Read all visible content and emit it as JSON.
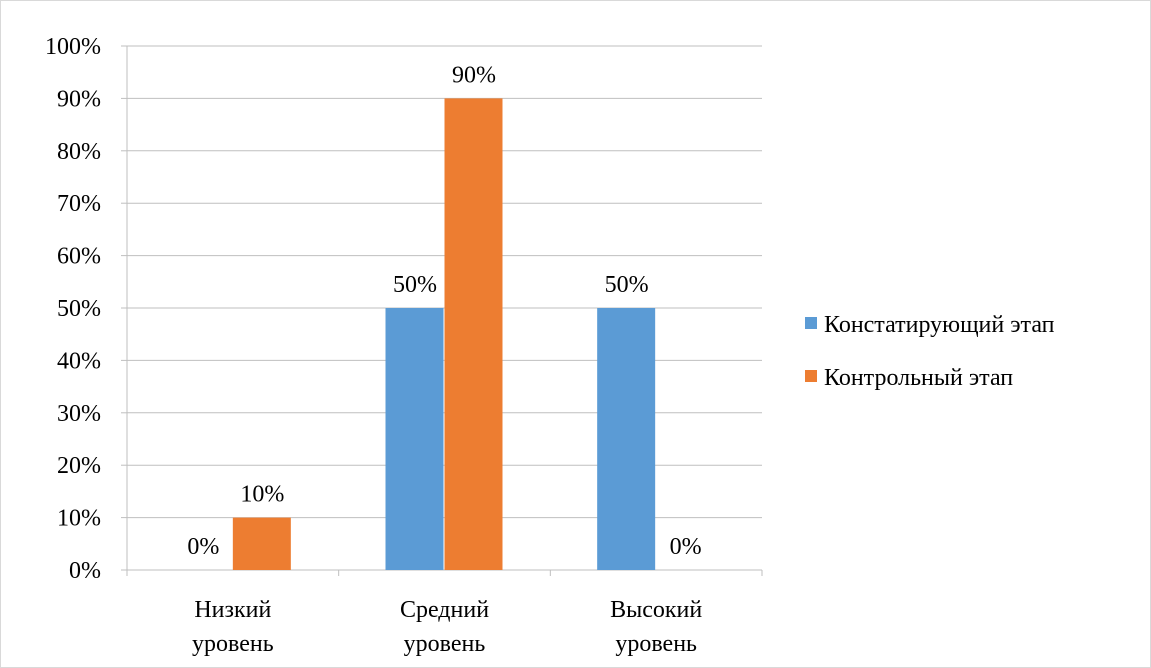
{
  "chart_data": {
    "type": "bar",
    "categories": [
      [
        "Низкий",
        "уровень"
      ],
      [
        "Средний",
        "уровень"
      ],
      [
        "Высокий",
        "уровень"
      ]
    ],
    "series": [
      {
        "name": "Констатирующий этап",
        "color": "#5B9BD5",
        "values": [
          0,
          50,
          50
        ],
        "labels": [
          "0%",
          "50%",
          "50%"
        ]
      },
      {
        "name": "Контрольный этап",
        "color": "#ED7D31",
        "values": [
          10,
          90,
          0
        ],
        "labels": [
          "10%",
          "90%",
          "0%"
        ]
      }
    ],
    "ylim": [
      0,
      100
    ],
    "yticks": [
      0,
      10,
      20,
      30,
      40,
      50,
      60,
      70,
      80,
      90,
      100
    ],
    "ytick_labels": [
      "0%",
      "10%",
      "20%",
      "30%",
      "40%",
      "50%",
      "60%",
      "70%",
      "80%",
      "90%",
      "100%"
    ],
    "grid": true,
    "legend_position": "right",
    "title": "",
    "xlabel": "",
    "ylabel": ""
  }
}
